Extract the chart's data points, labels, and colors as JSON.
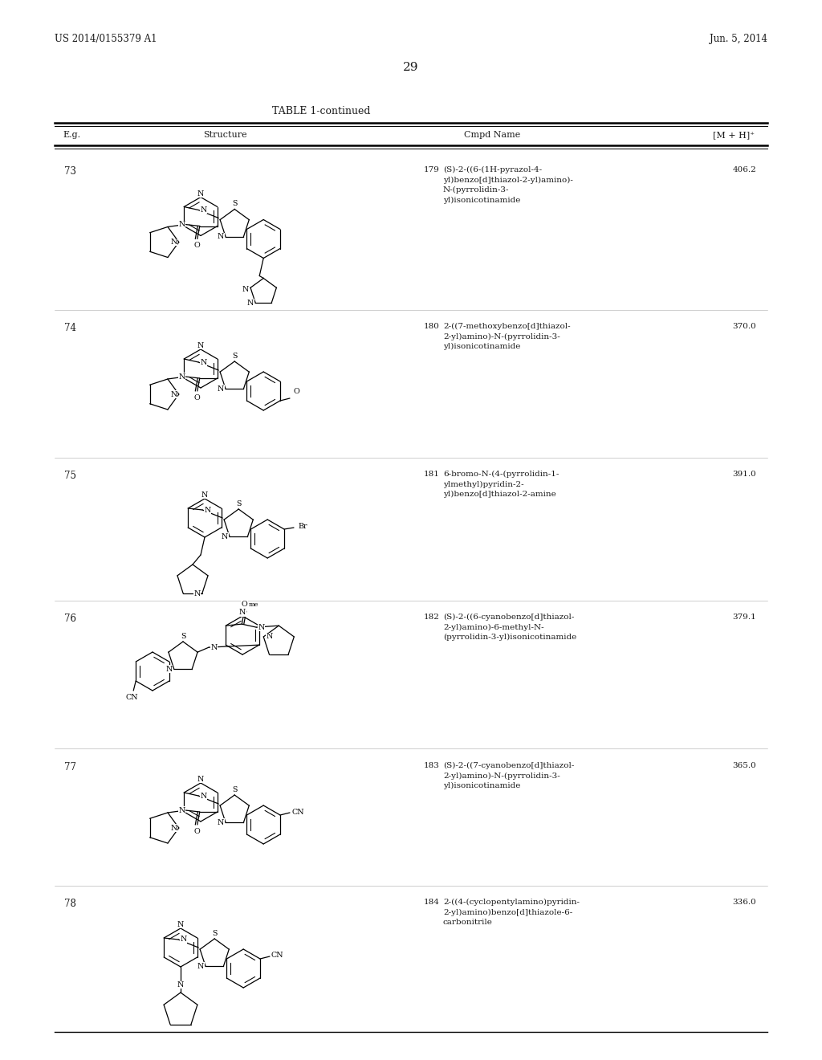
{
  "page_header_left": "US 2014/0155379 A1",
  "page_header_right": "Jun. 5, 2014",
  "page_number": "29",
  "table_title": "TABLE 1-continued",
  "col_eg": "E.g.",
  "col_structure": "Structure",
  "col_cmpd": "Cmpd Name",
  "col_mh": "[M + H]⁺",
  "background_color": "#ffffff",
  "rows": [
    {
      "eg": "73",
      "cmpd_num": "179",
      "cmpd_name": "(S)-2-((6-(1H-pyrazol-4-\nyl)benzo[d]thiazol-2-yl)amino)-\nN-(pyrrolidin-3-\nyl)isonicotinamide",
      "mh": "406.2"
    },
    {
      "eg": "74",
      "cmpd_num": "180",
      "cmpd_name": "2-((7-methoxybenzo[d]thiazol-\n2-yl)amino)-N-(pyrrolidin-3-\nyl)isonicotinamide",
      "mh": "370.0"
    },
    {
      "eg": "75",
      "cmpd_num": "181",
      "cmpd_name": "6-bromo-N-(4-(pyrrolidin-1-\nylmethyl)pyridin-2-\nyl)benzo[d]thiazol-2-amine",
      "mh": "391.0"
    },
    {
      "eg": "76",
      "cmpd_num": "182",
      "cmpd_name": "(S)-2-((6-cyanobenzo[d]thiazol-\n2-yl)amino)-6-methyl-N-\n(pyrrolidin-3-yl)isonicotinamide",
      "mh": "379.1"
    },
    {
      "eg": "77",
      "cmpd_num": "183",
      "cmpd_name": "(S)-2-((7-cyanobenzo[d]thiazol-\n2-yl)amino)-N-(pyrrolidin-3-\nyl)isonicotinamide",
      "mh": "365.0"
    },
    {
      "eg": "78",
      "cmpd_num": "184",
      "cmpd_name": "2-((4-(cyclopentylamino)pyridin-\n2-yl)amino)benzo[d]thiazole-6-\ncarbonitrile",
      "mh": "336.0"
    }
  ]
}
